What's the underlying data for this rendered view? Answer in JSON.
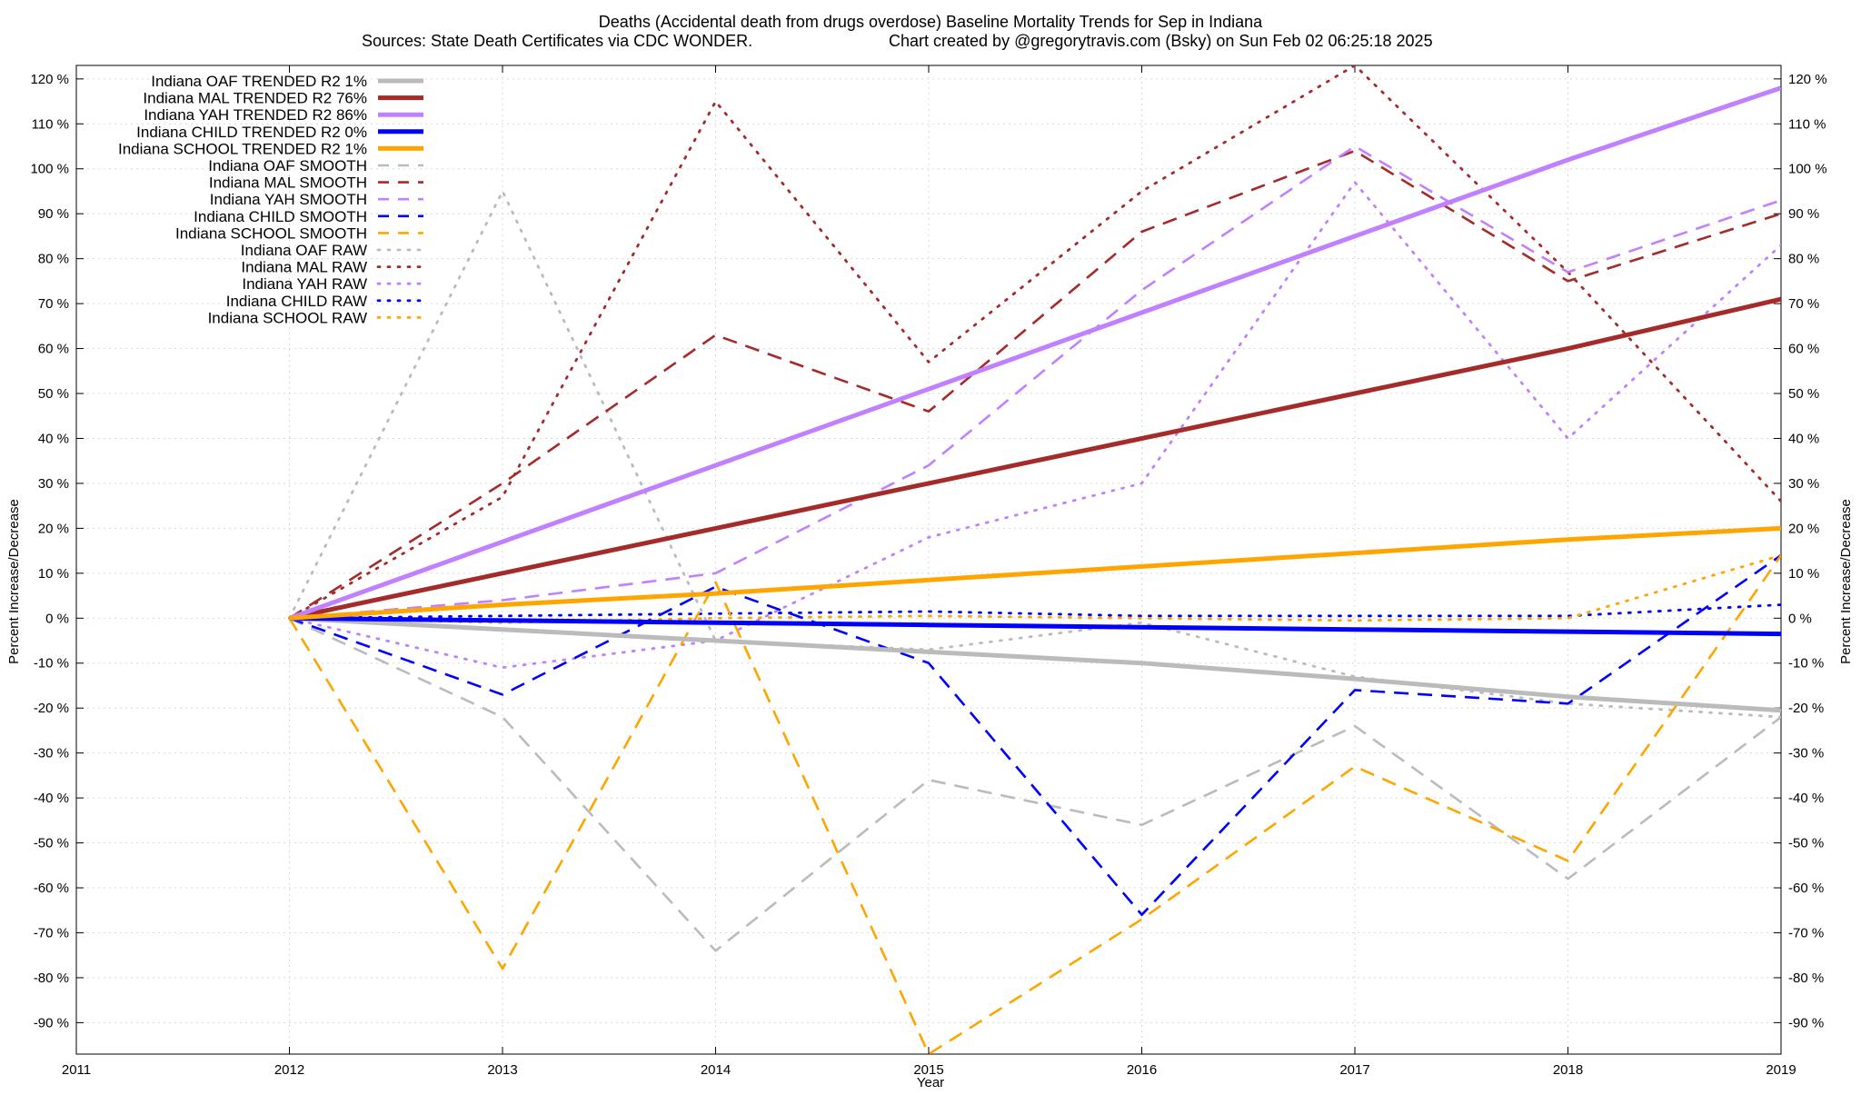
{
  "chart_data": {
    "type": "line",
    "title": "Deaths (Accidental death from drugs overdose)  Baseline Mortality Trends for Sep in Indiana",
    "subtitle_left": "Sources: State Death Certificates via CDC WONDER.",
    "subtitle_right": "Chart created by @gregorytravis.com (Bsky) on Sun Feb 02 06:25:18 2025",
    "xlabel": "Year",
    "ylabel": "Percent Increase/Decrease",
    "xlim": [
      2011,
      2019
    ],
    "ylim": [
      -97,
      123
    ],
    "x_ticks": [
      "2011",
      "2012",
      "2013",
      "2014",
      "2015",
      "2016",
      "2017",
      "2018",
      "2019"
    ],
    "y_ticks": [
      "120 %",
      "110 %",
      "100 %",
      "90 %",
      "80 %",
      "70 %",
      "60 %",
      "50 %",
      "40 %",
      "30 %",
      "20 %",
      "10 %",
      "0 %",
      "-10 %",
      "-20 %",
      "-30 %",
      "-40 %",
      "-50 %",
      "-60 %",
      "-70 %",
      "-80 %",
      "-90 %"
    ],
    "grid": true,
    "legend_position": "top-left",
    "x": [
      2012,
      2013,
      2014,
      2015,
      2016,
      2017,
      2018,
      2019
    ],
    "series": [
      {
        "name": "Indiana OAF TRENDED R2",
        "r2": "1%",
        "style": "solid",
        "color": "#bbbbbb",
        "values": [
          0,
          -2.5,
          -5,
          -7.5,
          -10,
          -13.5,
          -17.5,
          -20.5
        ]
      },
      {
        "name": "Indiana MAL TRENDED R2",
        "r2": "76%",
        "style": "solid",
        "color": "#a52a2a",
        "values": [
          0,
          10,
          20,
          30,
          40,
          50,
          60,
          71
        ]
      },
      {
        "name": "Indiana YAH TRENDED R2",
        "r2": "86%",
        "style": "solid",
        "color": "#c080ff",
        "values": [
          0,
          17,
          34,
          51,
          68,
          85,
          102,
          118
        ]
      },
      {
        "name": "Indiana CHILD TRENDED R2",
        "r2": "0%",
        "style": "solid",
        "color": "#0000ff",
        "values": [
          0,
          -0.5,
          -1,
          -1.5,
          -2,
          -2.5,
          -3,
          -3.5
        ]
      },
      {
        "name": "Indiana SCHOOL TRENDED R2",
        "r2": "1%",
        "style": "solid",
        "color": "#ffa500",
        "values": [
          0,
          3,
          5.5,
          8.5,
          11.5,
          14.5,
          17.5,
          20
        ]
      },
      {
        "name": "Indiana OAF SMOOTH",
        "style": "dashed",
        "color": "#bbbbbb",
        "values": [
          0,
          -22,
          -74,
          -36,
          -46,
          -24,
          -58,
          -22
        ]
      },
      {
        "name": "Indiana MAL SMOOTH",
        "style": "dashed",
        "color": "#a52a2a",
        "values": [
          0,
          30,
          63,
          46,
          86,
          104,
          75,
          90
        ]
      },
      {
        "name": "Indiana YAH SMOOTH",
        "style": "dashed",
        "color": "#c080ff",
        "values": [
          0,
          4,
          10,
          34,
          73,
          105,
          77,
          93
        ]
      },
      {
        "name": "Indiana CHILD SMOOTH",
        "style": "dashed",
        "color": "#0000ff",
        "values": [
          0,
          -17,
          7,
          -10,
          -66,
          -16,
          -19,
          14
        ]
      },
      {
        "name": "Indiana SCHOOL SMOOTH",
        "style": "dashed",
        "color": "#ffa500",
        "values": [
          0,
          -78,
          8,
          -97,
          -67,
          -33,
          -54,
          14
        ]
      },
      {
        "name": "Indiana OAF RAW",
        "style": "dotted",
        "color": "#bbbbbb",
        "values": [
          0,
          95,
          -5,
          -7,
          -1,
          -13,
          -19,
          -22
        ]
      },
      {
        "name": "Indiana MAL RAW",
        "style": "dotted",
        "color": "#a52a2a",
        "values": [
          0,
          27,
          115,
          57,
          95,
          123,
          77,
          26
        ]
      },
      {
        "name": "Indiana YAH RAW",
        "style": "dotted",
        "color": "#c080ff",
        "values": [
          0,
          -11,
          -5,
          18,
          30,
          97,
          40,
          83
        ]
      },
      {
        "name": "Indiana CHILD RAW",
        "style": "dotted",
        "color": "#0000ff",
        "values": [
          0,
          0.5,
          1,
          1.5,
          0.5,
          0.5,
          0.5,
          3
        ]
      },
      {
        "name": "Indiana SCHOOL RAW",
        "style": "dotted",
        "color": "#ffa500",
        "values": [
          0,
          -1,
          0,
          0.5,
          0,
          -0.5,
          0,
          14
        ]
      }
    ]
  }
}
